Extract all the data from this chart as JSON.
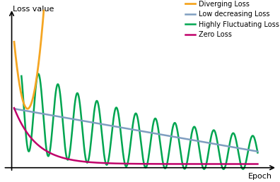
{
  "xlabel": "Epoch",
  "ylabel": "Loss value",
  "background_color": "#ffffff",
  "legend_entries": [
    {
      "label": "Diverging Loss",
      "color": "#f5a623",
      "lw": 2.0
    },
    {
      "label": "Low decreasing Loss",
      "color": "#7f9ec0",
      "lw": 1.8
    },
    {
      "label": "Highly Fluctuating Loss",
      "color": "#00a550",
      "lw": 1.8
    },
    {
      "label": "Zero Loss",
      "color": "#c0006a",
      "lw": 1.8
    }
  ],
  "diverging_color": "#f5a623",
  "decreasing_color": "#7f9ec0",
  "fluctuating_color": "#00a550",
  "zero_color": "#c0006a"
}
